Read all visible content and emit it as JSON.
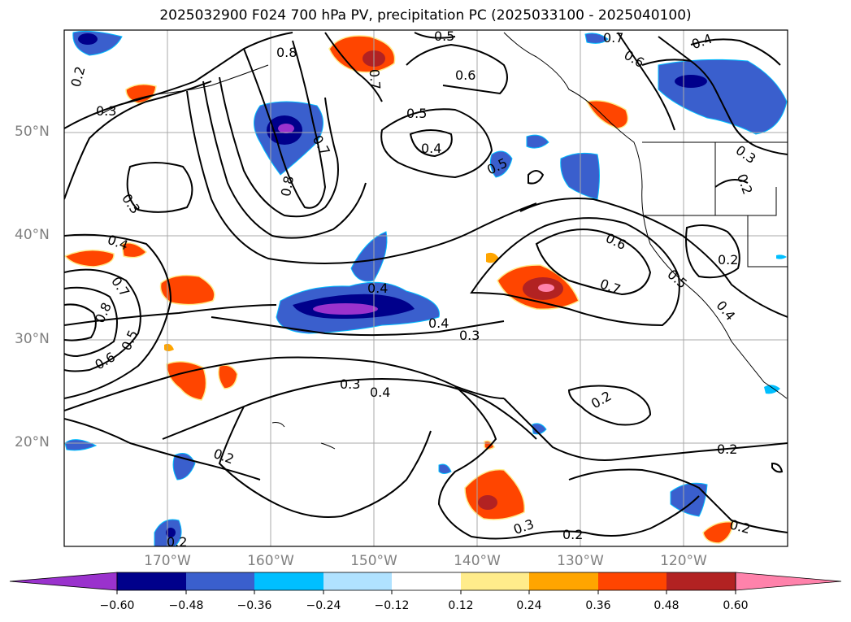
{
  "title": "2025032900 F024 700 hPa PV, precipitation PC (2025033100 - 2025040100)",
  "map": {
    "lat_labels": [
      "50°N",
      "40°N",
      "30°N",
      "20°N"
    ],
    "lon_labels": [
      "170°W",
      "160°W",
      "150°W",
      "140°W",
      "130°W",
      "120°W"
    ],
    "contour_labels": [
      "0.2",
      "0.3",
      "0.4",
      "0.5",
      "0.6",
      "0.7",
      "0.8"
    ]
  },
  "colorbar": {
    "ticks": [
      "−0.60",
      "−0.48",
      "−0.36",
      "−0.24",
      "−0.12",
      "0.12",
      "0.24",
      "0.36",
      "0.48",
      "0.60"
    ],
    "colors": [
      "#9a32cd",
      "#00008b",
      "#3a5fcd",
      "#00bfff",
      "#b0e2ff",
      "#ffffff",
      "#ffec8b",
      "#ffa500",
      "#ff4500",
      "#b22222",
      "#ff82ab"
    ]
  },
  "colors": {
    "neg_strong": "#9a32cd",
    "neg_dark": "#00008b",
    "neg_mid": "#3a5fcd",
    "neg_light": "#00bfff",
    "pos_light": "#ffec8b",
    "pos_mid": "#ffa500",
    "pos_strong": "#ff4500",
    "pos_dark": "#b22222",
    "pos_max": "#ff82ab"
  }
}
